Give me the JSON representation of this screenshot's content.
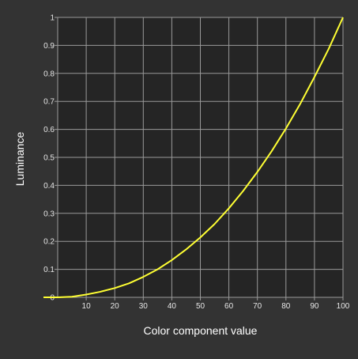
{
  "chart_data": {
    "type": "line",
    "title": "",
    "xlabel": "Color component value",
    "ylabel": "Luminance",
    "xlim": [
      0,
      100
    ],
    "ylim": [
      0,
      1
    ],
    "x_ticks": [
      10,
      20,
      30,
      40,
      50,
      60,
      70,
      80,
      90,
      100
    ],
    "y_ticks": [
      0,
      0.1,
      0.2,
      0.3,
      0.4,
      0.5,
      0.6,
      0.7,
      0.8,
      0.9,
      1
    ],
    "grid": true,
    "legend": "none",
    "series": [
      {
        "color": "#ffff33",
        "x": [
          0,
          5,
          10,
          15,
          20,
          25,
          30,
          35,
          40,
          45,
          50,
          55,
          60,
          65,
          70,
          75,
          80,
          85,
          90,
          95,
          100
        ],
        "y": [
          0,
          0.002,
          0.01,
          0.02,
          0.033,
          0.05,
          0.073,
          0.1,
          0.133,
          0.171,
          0.214,
          0.262,
          0.318,
          0.38,
          0.448,
          0.522,
          0.603,
          0.691,
          0.787,
          0.888,
          1.0
        ]
      }
    ]
  },
  "colors": {
    "background": "#333333",
    "plot_background": "#252525",
    "grid": "#9a9a9a",
    "text": "#e6e6e6"
  }
}
